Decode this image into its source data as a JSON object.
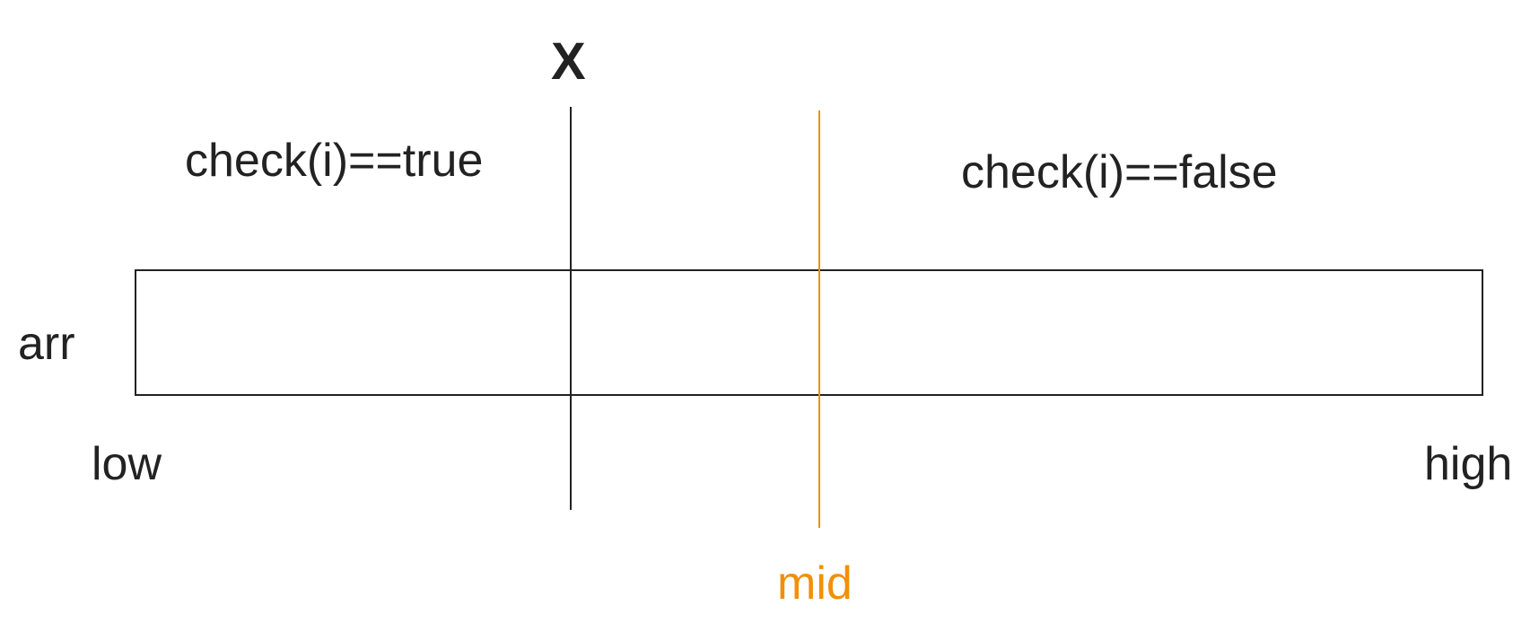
{
  "labels": {
    "x": "X",
    "check_true": "check(i)==true",
    "check_false": "check(i)==false",
    "arr": "arr",
    "low": "low",
    "high": "high",
    "mid": "mid"
  },
  "colors": {
    "text": "#222222",
    "line": "#222222",
    "mid": "#f0900a"
  }
}
